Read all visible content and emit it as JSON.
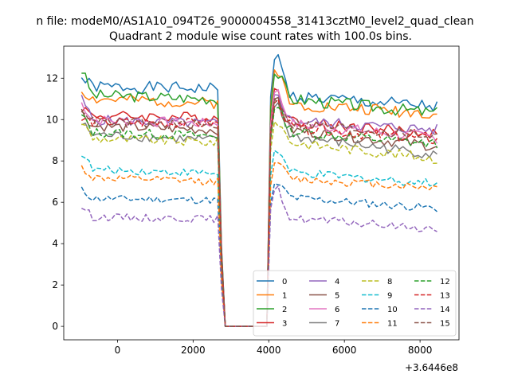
{
  "figure": {
    "suptitle": "n file: modeM0/AS1A10_094T26_9000004558_31413cztM0_level2_quad_clean",
    "offset_label": "+3.6446e8"
  },
  "chart_data": {
    "type": "line",
    "title": "Quadrant 2 module wise count rates with 100.0s bins.",
    "xlabel": "",
    "ylabel": "",
    "xlim": [
      -1420,
      9030
    ],
    "ylim": [
      -0.65,
      13.55
    ],
    "x_ticks": [
      0,
      2000,
      4000,
      6000,
      8000
    ],
    "x_tick_labels": [
      "0",
      "2000",
      "4000",
      "6000",
      "8000"
    ],
    "y_ticks": [
      0,
      2,
      4,
      6,
      8,
      10,
      12
    ],
    "y_tick_labels": [
      "0",
      "2",
      "4",
      "6",
      "8",
      "10",
      "12"
    ],
    "grid": false,
    "legend_placement": "lower-right",
    "legend_columns": 4,
    "profile": {
      "seg1_x": [
        -950,
        2650
      ],
      "gap_x": [
        2850,
        3950
      ],
      "seg2_x": [
        4050,
        8500
      ]
    },
    "series": [
      {
        "name": "0",
        "style": "solid",
        "color": "#1f77b4",
        "start": 12.0,
        "level1": 11.6,
        "level1_end": 11.5,
        "peak": 12.9,
        "level2": 11.2,
        "level2_end": 10.6,
        "seed": 1
      },
      {
        "name": "1",
        "style": "solid",
        "color": "#ff7f0e",
        "start": 11.4,
        "level1": 11.0,
        "level1_end": 10.8,
        "peak": 12.4,
        "level2": 10.8,
        "level2_end": 10.3,
        "seed": 2
      },
      {
        "name": "2",
        "style": "solid",
        "color": "#2ca02c",
        "start": 12.4,
        "level1": 11.2,
        "level1_end": 11.0,
        "peak": 12.2,
        "level2": 11.1,
        "level2_end": 10.3,
        "seed": 3
      },
      {
        "name": "3",
        "style": "solid",
        "color": "#d62728",
        "start": 10.6,
        "level1": 10.2,
        "level1_end": 10.1,
        "peak": 11.5,
        "level2": 10.0,
        "level2_end": 9.3,
        "seed": 4
      },
      {
        "name": "4",
        "style": "solid",
        "color": "#9467bd",
        "start": 11.0,
        "level1": 10.0,
        "level1_end": 9.8,
        "peak": 11.2,
        "level2": 10.0,
        "level2_end": 9.5,
        "seed": 5
      },
      {
        "name": "5",
        "style": "solid",
        "color": "#8c564b",
        "start": 10.4,
        "level1": 9.7,
        "level1_end": 9.5,
        "peak": 11.0,
        "level2": 9.6,
        "level2_end": 8.7,
        "seed": 6
      },
      {
        "name": "6",
        "style": "solid",
        "color": "#e377c2",
        "start": 10.8,
        "level1": 10.0,
        "level1_end": 9.8,
        "peak": 11.3,
        "level2": 9.9,
        "level2_end": 9.1,
        "seed": 7
      },
      {
        "name": "7",
        "style": "solid",
        "color": "#7f7f7f",
        "start": 9.8,
        "level1": 9.3,
        "level1_end": 9.0,
        "peak": 10.6,
        "level2": 9.3,
        "level2_end": 8.3,
        "seed": 8
      },
      {
        "name": "8",
        "style": "dashed",
        "color": "#bcbd22",
        "start": 9.9,
        "level1": 9.1,
        "level1_end": 8.9,
        "peak": 9.9,
        "level2": 9.0,
        "level2_end": 8.1,
        "seed": 9
      },
      {
        "name": "9",
        "style": "dashed",
        "color": "#17becf",
        "start": 8.4,
        "level1": 7.6,
        "level1_end": 7.4,
        "peak": 8.5,
        "level2": 7.5,
        "level2_end": 6.9,
        "seed": 10
      },
      {
        "name": "10",
        "style": "dashed",
        "color": "#1f77b4",
        "start": 6.6,
        "level1": 6.2,
        "level1_end": 6.1,
        "peak": 6.9,
        "level2": 6.3,
        "level2_end": 5.7,
        "seed": 11
      },
      {
        "name": "11",
        "style": "dashed",
        "color": "#ff7f0e",
        "start": 7.7,
        "level1": 7.2,
        "level1_end": 7.0,
        "peak": 7.9,
        "level2": 7.2,
        "level2_end": 6.7,
        "seed": 12
      },
      {
        "name": "12",
        "style": "dashed",
        "color": "#2ca02c",
        "start": 10.2,
        "level1": 9.4,
        "level1_end": 9.2,
        "peak": 10.5,
        "level2": 9.5,
        "level2_end": 8.8,
        "seed": 13
      },
      {
        "name": "13",
        "style": "dashed",
        "color": "#d62728",
        "start": 10.0,
        "level1": 9.9,
        "level1_end": 9.8,
        "peak": 10.8,
        "level2": 9.7,
        "level2_end": 9.0,
        "seed": 14
      },
      {
        "name": "14",
        "style": "dashed",
        "color": "#9467bd",
        "start": 5.8,
        "level1": 5.3,
        "level1_end": 5.2,
        "peak": 6.6,
        "level2": 5.3,
        "level2_end": 4.7,
        "seed": 15
      },
      {
        "name": "15",
        "style": "dashed",
        "color": "#8c564b",
        "start": 10.6,
        "level1": 9.9,
        "level1_end": 9.7,
        "peak": 11.0,
        "level2": 9.9,
        "level2_end": 9.2,
        "seed": 16
      }
    ]
  }
}
